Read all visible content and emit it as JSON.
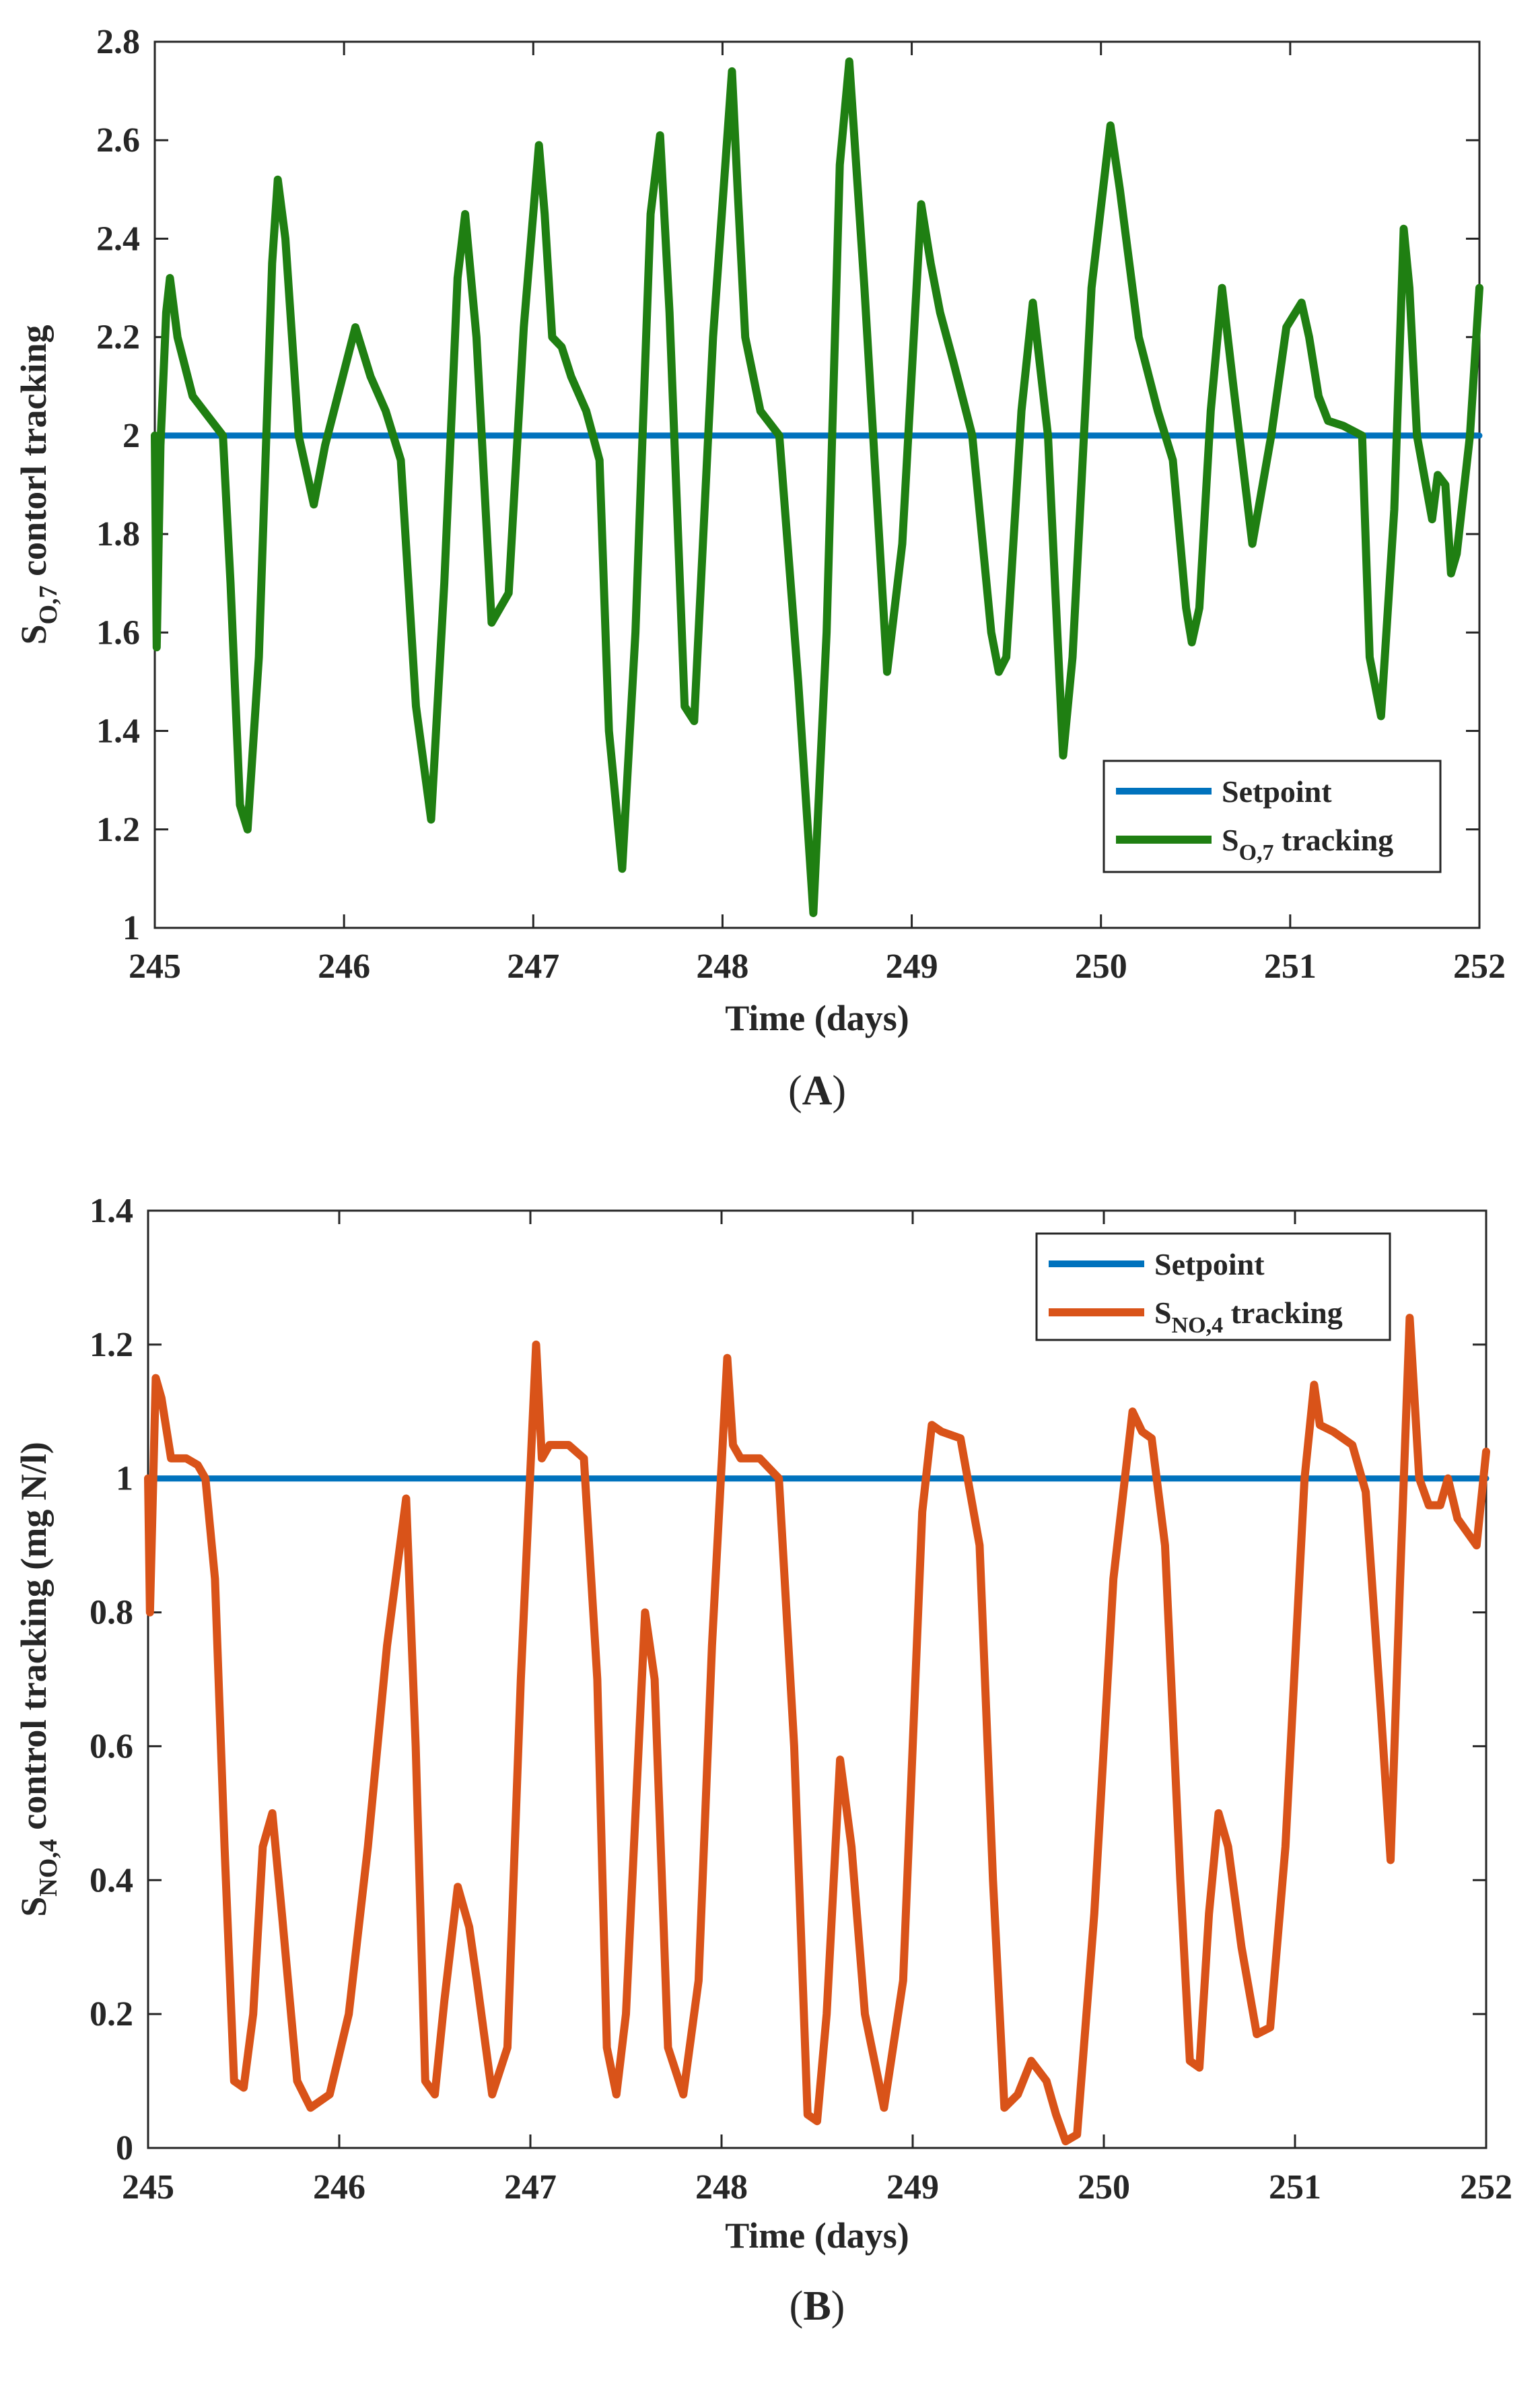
{
  "chart_data": [
    {
      "id": "A",
      "type": "line",
      "caption_label": "A",
      "title": "",
      "xlabel": "Time (days)",
      "ylabel": "S",
      "ylabel_sub": "O,7",
      "ylabel_rest": " contorl tracking",
      "xlim": [
        245,
        252
      ],
      "ylim": [
        1,
        2.8
      ],
      "xticks": [
        245,
        246,
        247,
        248,
        249,
        250,
        251,
        252
      ],
      "xtick_labels": [
        "245",
        "246",
        "247",
        "248",
        "249",
        "250",
        "251",
        "252"
      ],
      "yticks": [
        1,
        1.2,
        1.4,
        1.6,
        1.8,
        2,
        2.2,
        2.4,
        2.6,
        2.8
      ],
      "ytick_labels": [
        "1",
        "1.2",
        "1.4",
        "1.6",
        "1.8",
        "2",
        "2.2",
        "2.4",
        "2.6",
        "2.8"
      ],
      "legend_position": "bottom-right",
      "series": [
        {
          "name": "Setpoint",
          "legend_main": "Setpoint",
          "legend_sub": "",
          "legend_rest": "",
          "color": "#0072BD",
          "x": [
            245,
            252
          ],
          "y": [
            2,
            2
          ]
        },
        {
          "name": "S_O,7 tracking",
          "legend_main": "S",
          "legend_sub": "O,7",
          "legend_rest": " tracking",
          "color": "#1F7F12",
          "x": [
            245.0,
            245.01,
            245.03,
            245.06,
            245.08,
            245.12,
            245.2,
            245.3,
            245.36,
            245.4,
            245.45,
            245.49,
            245.55,
            245.62,
            245.65,
            245.69,
            245.76,
            245.84,
            245.9,
            245.98,
            246.06,
            246.14,
            246.22,
            246.3,
            246.38,
            246.46,
            246.53,
            246.6,
            246.64,
            246.7,
            246.78,
            246.87,
            246.95,
            247.03,
            247.06,
            247.1,
            247.15,
            247.2,
            247.28,
            247.35,
            247.4,
            247.47,
            247.54,
            247.62,
            247.67,
            247.72,
            247.8,
            247.85,
            247.95,
            248.05,
            248.08,
            248.12,
            248.2,
            248.3,
            248.4,
            248.48,
            248.55,
            248.62,
            248.67,
            248.75,
            248.87,
            248.95,
            249.05,
            249.1,
            249.15,
            249.22,
            249.32,
            249.42,
            249.46,
            249.5,
            249.58,
            249.64,
            249.72,
            249.8,
            249.85,
            249.95,
            250.05,
            250.1,
            250.2,
            250.3,
            250.38,
            250.45,
            250.48,
            250.52,
            250.58,
            250.64,
            250.7,
            250.8,
            250.9,
            250.98,
            251.06,
            251.1,
            251.15,
            251.2,
            251.28,
            251.38,
            251.42,
            251.48,
            251.55,
            251.6,
            251.63,
            251.67,
            251.75,
            251.78,
            251.82,
            251.85,
            251.88,
            251.95,
            252.0
          ],
          "y": [
            2.0,
            1.57,
            1.98,
            2.25,
            2.32,
            2.2,
            2.08,
            2.03,
            2.0,
            1.7,
            1.25,
            1.2,
            1.55,
            2.35,
            2.52,
            2.4,
            2.0,
            1.86,
            1.98,
            2.1,
            2.22,
            2.12,
            2.05,
            1.95,
            1.45,
            1.22,
            1.7,
            2.32,
            2.45,
            2.2,
            1.62,
            1.68,
            2.22,
            2.59,
            2.45,
            2.2,
            2.18,
            2.12,
            2.05,
            1.95,
            1.4,
            1.12,
            1.6,
            2.45,
            2.61,
            2.25,
            1.45,
            1.42,
            2.2,
            2.74,
            2.5,
            2.2,
            2.05,
            2.0,
            1.5,
            1.03,
            1.6,
            2.55,
            2.76,
            2.3,
            1.52,
            1.78,
            2.47,
            2.35,
            2.25,
            2.15,
            2.0,
            1.6,
            1.52,
            1.55,
            2.05,
            2.27,
            2.0,
            1.35,
            1.55,
            2.3,
            2.63,
            2.5,
            2.2,
            2.05,
            1.95,
            1.65,
            1.58,
            1.65,
            2.05,
            2.3,
            2.1,
            1.78,
            2.0,
            2.22,
            2.27,
            2.2,
            2.08,
            2.03,
            2.02,
            2.0,
            1.55,
            1.43,
            1.85,
            2.42,
            2.3,
            2.0,
            1.83,
            1.92,
            1.9,
            1.72,
            1.76,
            2.0,
            2.3
          ]
        }
      ]
    },
    {
      "id": "B",
      "type": "line",
      "caption_label": "B",
      "title": "",
      "xlabel": "Time (days)",
      "ylabel": "S",
      "ylabel_sub": "NO,4",
      "ylabel_rest": " control tracking (mg N/l)",
      "xlim": [
        245,
        252
      ],
      "ylim": [
        0,
        1.4
      ],
      "xticks": [
        245,
        246,
        247,
        248,
        249,
        250,
        251,
        252
      ],
      "xtick_labels": [
        "245",
        "246",
        "247",
        "248",
        "249",
        "250",
        "251",
        "252"
      ],
      "yticks": [
        0,
        0.2,
        0.4,
        0.6,
        0.8,
        1,
        1.2,
        1.4
      ],
      "ytick_labels": [
        "0",
        "0.2",
        "0.4",
        "0.6",
        "0.8",
        "1",
        "1.2",
        "1.4"
      ],
      "legend_position": "top-right",
      "series": [
        {
          "name": "Setpoint",
          "legend_main": "Setpoint",
          "legend_sub": "",
          "legend_rest": "",
          "color": "#0072BD",
          "x": [
            245,
            252
          ],
          "y": [
            1,
            1
          ]
        },
        {
          "name": "S_NO,4 tracking",
          "legend_main": "S",
          "legend_sub": "NO,4",
          "legend_rest": " tracking",
          "color": "#D95319",
          "x": [
            245.0,
            245.01,
            245.04,
            245.07,
            245.12,
            245.2,
            245.26,
            245.3,
            245.35,
            245.4,
            245.45,
            245.5,
            245.55,
            245.6,
            245.65,
            245.7,
            245.78,
            245.85,
            245.95,
            246.05,
            246.15,
            246.25,
            246.35,
            246.4,
            246.45,
            246.5,
            246.55,
            246.62,
            246.68,
            246.72,
            246.8,
            246.88,
            246.95,
            247.03,
            247.06,
            247.1,
            247.2,
            247.28,
            247.35,
            247.4,
            247.45,
            247.5,
            247.6,
            247.65,
            247.72,
            247.8,
            247.88,
            247.95,
            248.03,
            248.06,
            248.1,
            248.2,
            248.3,
            248.38,
            248.45,
            248.5,
            248.55,
            248.62,
            248.68,
            248.75,
            248.85,
            248.95,
            249.05,
            249.1,
            249.15,
            249.25,
            249.35,
            249.42,
            249.48,
            249.55,
            249.62,
            249.7,
            249.75,
            249.8,
            249.86,
            249.95,
            250.05,
            250.15,
            250.2,
            250.25,
            250.32,
            250.4,
            250.45,
            250.5,
            250.55,
            250.6,
            250.65,
            250.72,
            250.8,
            250.87,
            250.95,
            251.05,
            251.1,
            251.13,
            251.2,
            251.3,
            251.37,
            251.45,
            251.5,
            251.55,
            251.6,
            251.65,
            251.7,
            251.76,
            251.8,
            251.85,
            251.9,
            251.95,
            252.0
          ],
          "y": [
            1.0,
            0.8,
            1.15,
            1.12,
            1.03,
            1.03,
            1.02,
            1.0,
            0.85,
            0.45,
            0.1,
            0.09,
            0.2,
            0.45,
            0.5,
            0.35,
            0.1,
            0.06,
            0.08,
            0.2,
            0.45,
            0.75,
            0.97,
            0.6,
            0.1,
            0.08,
            0.22,
            0.39,
            0.33,
            0.25,
            0.08,
            0.15,
            0.7,
            1.2,
            1.03,
            1.05,
            1.05,
            1.03,
            0.7,
            0.15,
            0.08,
            0.2,
            0.8,
            0.7,
            0.15,
            0.08,
            0.25,
            0.75,
            1.18,
            1.05,
            1.03,
            1.03,
            1.0,
            0.6,
            0.05,
            0.04,
            0.2,
            0.58,
            0.45,
            0.2,
            0.06,
            0.25,
            0.95,
            1.08,
            1.07,
            1.06,
            0.9,
            0.4,
            0.06,
            0.08,
            0.13,
            0.1,
            0.05,
            0.01,
            0.02,
            0.35,
            0.85,
            1.1,
            1.07,
            1.06,
            0.9,
            0.4,
            0.13,
            0.12,
            0.35,
            0.5,
            0.45,
            0.3,
            0.17,
            0.18,
            0.45,
            1.0,
            1.14,
            1.08,
            1.07,
            1.05,
            0.98,
            0.65,
            0.43,
            0.85,
            1.24,
            1.0,
            0.96,
            0.96,
            1.0,
            0.94,
            0.92,
            0.9,
            1.04
          ]
        }
      ]
    }
  ]
}
